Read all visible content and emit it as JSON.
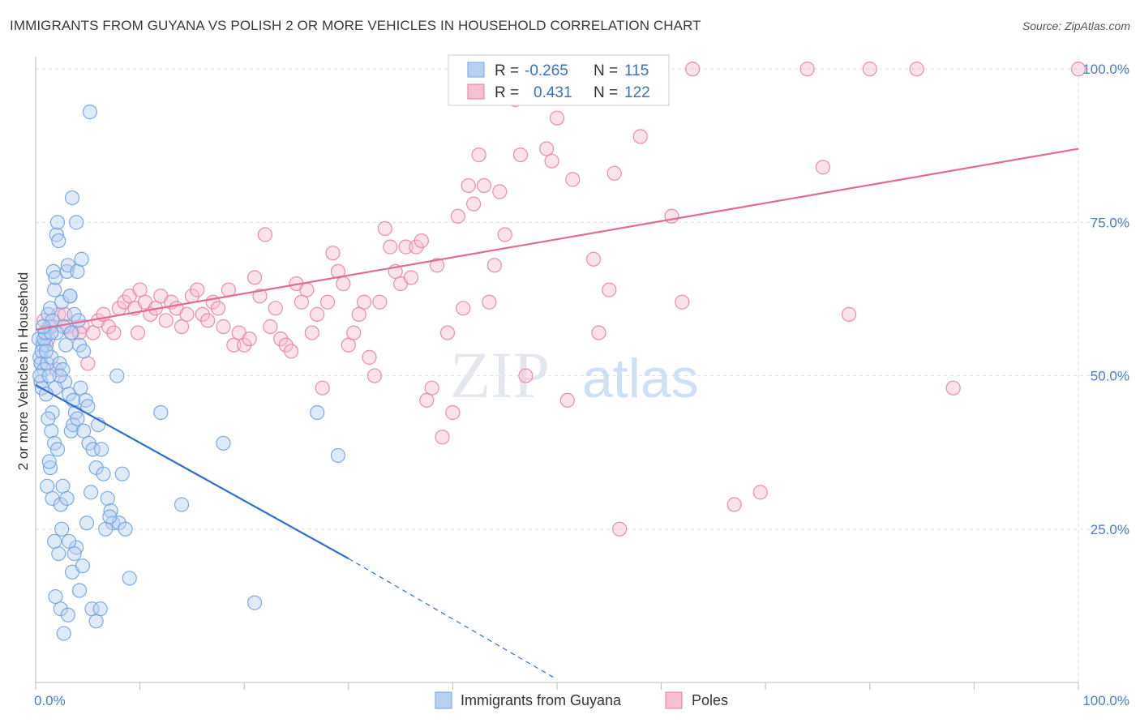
{
  "title": "IMMIGRANTS FROM GUYANA VS POLISH 2 OR MORE VEHICLES IN HOUSEHOLD CORRELATION CHART",
  "source": "Source: ZipAtlas.com",
  "watermark": {
    "zip": "ZIP",
    "atlas": "atlas"
  },
  "colors": {
    "blue": "#6fa3e0",
    "blue_fill": "#b7d0f2",
    "blue_line": "#2f6fd2",
    "pink": "#ea7aa0",
    "pink_fill": "#f6bfd2",
    "pink_line": "#e06b95",
    "tick_text": "#4a7cc9",
    "grid": "#dddddd"
  },
  "legend": {
    "rows": [
      {
        "r_label": "R =",
        "r_value": "-0.265",
        "n_label": "N =",
        "n_value": "115"
      },
      {
        "r_label": "R =",
        "r_value": "0.431",
        "n_label": "N =",
        "n_value": "122"
      }
    ]
  },
  "chart_data": {
    "type": "scatter",
    "title": "IMMIGRANTS FROM GUYANA VS POLISH 2 OR MORE VEHICLES IN HOUSEHOLD CORRELATION CHART",
    "xlabel": "",
    "ylabel": "2 or more Vehicles in Household",
    "xlim": [
      0,
      100
    ],
    "ylim": [
      0,
      102
    ],
    "x_tick_labels": {
      "left": "0.0%",
      "right": "100.0%"
    },
    "y_ticks": [
      {
        "value": 25,
        "label": "25.0%"
      },
      {
        "value": 50,
        "label": "50.0%"
      },
      {
        "value": 75,
        "label": "75.0%"
      },
      {
        "value": 100,
        "label": "100.0%"
      }
    ],
    "grid": true,
    "legend_position": "bottom-center",
    "series": [
      {
        "name": "Immigrants from Guyana",
        "color": "#6fa3e0",
        "trend": {
          "x": [
            0,
            30
          ],
          "y": [
            48.5,
            20.2
          ],
          "dashed_to": [
            50,
            0.5
          ]
        },
        "points": [
          [
            0.3,
            56
          ],
          [
            0.4,
            53
          ],
          [
            0.5,
            52
          ],
          [
            0.5,
            49
          ],
          [
            0.6,
            48
          ],
          [
            0.7,
            55
          ],
          [
            0.8,
            51
          ],
          [
            0.9,
            57
          ],
          [
            1.0,
            55
          ],
          [
            1.1,
            52
          ],
          [
            0.4,
            50
          ],
          [
            0.6,
            54
          ],
          [
            0.8,
            56
          ],
          [
            1.2,
            60
          ],
          [
            1.3,
            58
          ],
          [
            1.4,
            61
          ],
          [
            1.5,
            53
          ],
          [
            1.6,
            59
          ],
          [
            1.7,
            67
          ],
          [
            1.8,
            64
          ],
          [
            1.9,
            66
          ],
          [
            2.0,
            73
          ],
          [
            2.1,
            75
          ],
          [
            2.2,
            72
          ],
          [
            2.5,
            62
          ],
          [
            2.7,
            58
          ],
          [
            2.9,
            55
          ],
          [
            3.0,
            67
          ],
          [
            3.1,
            68
          ],
          [
            3.3,
            63
          ],
          [
            3.4,
            57
          ],
          [
            3.5,
            79
          ],
          [
            3.7,
            60
          ],
          [
            3.9,
            75
          ],
          [
            4.0,
            67
          ],
          [
            4.2,
            55
          ],
          [
            4.4,
            69
          ],
          [
            4.6,
            54
          ],
          [
            5.2,
            93
          ],
          [
            2.3,
            52
          ],
          [
            2.6,
            51
          ],
          [
            2.8,
            49
          ],
          [
            3.2,
            47
          ],
          [
            3.6,
            46
          ],
          [
            3.8,
            44
          ],
          [
            4.3,
            48
          ],
          [
            4.8,
            46
          ],
          [
            5.0,
            45
          ],
          [
            1.9,
            48
          ],
          [
            1.6,
            44
          ],
          [
            1.2,
            43
          ],
          [
            1.0,
            47
          ],
          [
            1.5,
            41
          ],
          [
            1.8,
            39
          ],
          [
            2.1,
            38
          ],
          [
            1.4,
            35
          ],
          [
            1.3,
            36
          ],
          [
            1.1,
            32
          ],
          [
            1.6,
            30
          ],
          [
            2.4,
            29
          ],
          [
            2.6,
            32
          ],
          [
            3.0,
            30
          ],
          [
            3.4,
            41
          ],
          [
            3.6,
            42
          ],
          [
            4.0,
            43
          ],
          [
            4.6,
            41
          ],
          [
            5.1,
            39
          ],
          [
            5.5,
            38
          ],
          [
            5.8,
            35
          ],
          [
            6.0,
            42
          ],
          [
            6.3,
            38
          ],
          [
            6.5,
            34
          ],
          [
            6.9,
            30
          ],
          [
            7.2,
            28
          ],
          [
            7.4,
            26
          ],
          [
            7.8,
            50
          ],
          [
            8.3,
            34
          ],
          [
            8.0,
            26
          ],
          [
            8.6,
            25
          ],
          [
            9.0,
            17
          ],
          [
            5.3,
            31
          ],
          [
            3.9,
            22
          ],
          [
            3.2,
            23
          ],
          [
            2.5,
            25
          ],
          [
            2.2,
            21
          ],
          [
            1.8,
            23
          ],
          [
            1.9,
            14
          ],
          [
            2.4,
            12
          ],
          [
            2.7,
            8
          ],
          [
            3.1,
            11
          ],
          [
            3.5,
            18
          ],
          [
            3.7,
            21
          ],
          [
            4.2,
            15
          ],
          [
            4.5,
            19
          ],
          [
            4.9,
            26
          ],
          [
            5.4,
            12
          ],
          [
            5.8,
            10
          ],
          [
            6.2,
            12
          ],
          [
            6.7,
            25
          ],
          [
            7.1,
            27
          ],
          [
            1.0,
            54
          ],
          [
            0.9,
            57
          ],
          [
            2.0,
            57
          ],
          [
            1.5,
            57
          ],
          [
            3.3,
            63
          ],
          [
            4.1,
            59
          ],
          [
            12,
            44
          ],
          [
            14,
            29
          ],
          [
            18,
            39
          ],
          [
            21,
            13
          ],
          [
            27,
            44
          ],
          [
            29,
            37
          ],
          [
            2.3,
            50
          ],
          [
            1.3,
            50
          ],
          [
            0.7,
            58
          ]
        ]
      },
      {
        "name": "Poles",
        "color": "#ea7aa0",
        "trend": {
          "x": [
            0,
            100
          ],
          "y": [
            57.5,
            87.0
          ]
        },
        "points": [
          [
            0.8,
            59
          ],
          [
            1.5,
            58
          ],
          [
            2.2,
            60
          ],
          [
            3.0,
            58
          ],
          [
            3.5,
            57
          ],
          [
            4.5,
            58
          ],
          [
            5.5,
            57
          ],
          [
            6.0,
            59
          ],
          [
            6.5,
            60
          ],
          [
            7.0,
            58
          ],
          [
            7.5,
            57
          ],
          [
            8.0,
            61
          ],
          [
            8.5,
            62
          ],
          [
            9.0,
            63
          ],
          [
            9.5,
            61
          ],
          [
            10.0,
            64
          ],
          [
            10.5,
            62
          ],
          [
            11.0,
            60
          ],
          [
            11.5,
            61
          ],
          [
            12.0,
            63
          ],
          [
            12.5,
            59
          ],
          [
            13.0,
            62
          ],
          [
            13.5,
            61
          ],
          [
            14.0,
            58
          ],
          [
            14.5,
            60
          ],
          [
            15.0,
            63
          ],
          [
            15.5,
            64
          ],
          [
            16.0,
            60
          ],
          [
            16.5,
            59
          ],
          [
            17.0,
            62
          ],
          [
            17.5,
            61
          ],
          [
            18.0,
            58
          ],
          [
            18.5,
            64
          ],
          [
            19.0,
            55
          ],
          [
            19.5,
            57
          ],
          [
            20.0,
            55
          ],
          [
            20.5,
            56
          ],
          [
            21.0,
            66
          ],
          [
            21.5,
            63
          ],
          [
            22.0,
            73
          ],
          [
            22.5,
            58
          ],
          [
            23.0,
            61
          ],
          [
            23.5,
            56
          ],
          [
            24.0,
            55
          ],
          [
            24.5,
            54
          ],
          [
            25.0,
            65
          ],
          [
            25.5,
            62
          ],
          [
            26.0,
            64
          ],
          [
            26.5,
            57
          ],
          [
            27.0,
            60
          ],
          [
            27.5,
            48
          ],
          [
            28.0,
            62
          ],
          [
            28.5,
            70
          ],
          [
            29.0,
            67
          ],
          [
            29.5,
            65
          ],
          [
            30.0,
            55
          ],
          [
            30.5,
            57
          ],
          [
            31.0,
            60
          ],
          [
            31.5,
            62
          ],
          [
            32.0,
            53
          ],
          [
            32.5,
            50
          ],
          [
            33.0,
            62
          ],
          [
            33.5,
            74
          ],
          [
            34.0,
            71
          ],
          [
            34.5,
            67
          ],
          [
            35.0,
            65
          ],
          [
            35.5,
            71
          ],
          [
            36.0,
            66
          ],
          [
            36.5,
            71
          ],
          [
            37.0,
            72
          ],
          [
            37.5,
            46
          ],
          [
            38.0,
            48
          ],
          [
            38.5,
            68
          ],
          [
            39.0,
            40
          ],
          [
            39.5,
            57
          ],
          [
            40.0,
            44
          ],
          [
            40.5,
            76
          ],
          [
            41.0,
            61
          ],
          [
            41.5,
            81
          ],
          [
            42.0,
            78
          ],
          [
            42.5,
            86
          ],
          [
            43.0,
            81
          ],
          [
            43.5,
            62
          ],
          [
            44.0,
            68
          ],
          [
            44.5,
            80
          ],
          [
            45.0,
            73
          ],
          [
            46.0,
            95
          ],
          [
            46.5,
            86
          ],
          [
            47.0,
            50
          ],
          [
            48.0,
            100
          ],
          [
            48.5,
            100
          ],
          [
            49.0,
            87
          ],
          [
            49.5,
            85
          ],
          [
            50.0,
            92
          ],
          [
            51.0,
            46
          ],
          [
            51.5,
            82
          ],
          [
            52.5,
            100
          ],
          [
            53.5,
            69
          ],
          [
            54.0,
            57
          ],
          [
            55.0,
            64
          ],
          [
            55.5,
            83
          ],
          [
            56.0,
            25
          ],
          [
            58.0,
            89
          ],
          [
            61.0,
            76
          ],
          [
            62.0,
            62
          ],
          [
            63.0,
            100
          ],
          [
            67.0,
            29
          ],
          [
            69.5,
            31
          ],
          [
            74.0,
            100
          ],
          [
            75.5,
            84
          ],
          [
            78.0,
            60
          ],
          [
            80.0,
            100
          ],
          [
            84.5,
            100
          ],
          [
            88.0,
            48
          ],
          [
            100.0,
            100
          ],
          [
            0.5,
            52
          ],
          [
            1.2,
            56
          ],
          [
            2.8,
            60
          ],
          [
            4.2,
            57
          ],
          [
            5.0,
            52
          ],
          [
            9.8,
            57
          ],
          [
            2.0,
            51
          ]
        ]
      }
    ]
  },
  "bottom_legend": [
    "Immigrants from Guyana",
    "Poles"
  ]
}
